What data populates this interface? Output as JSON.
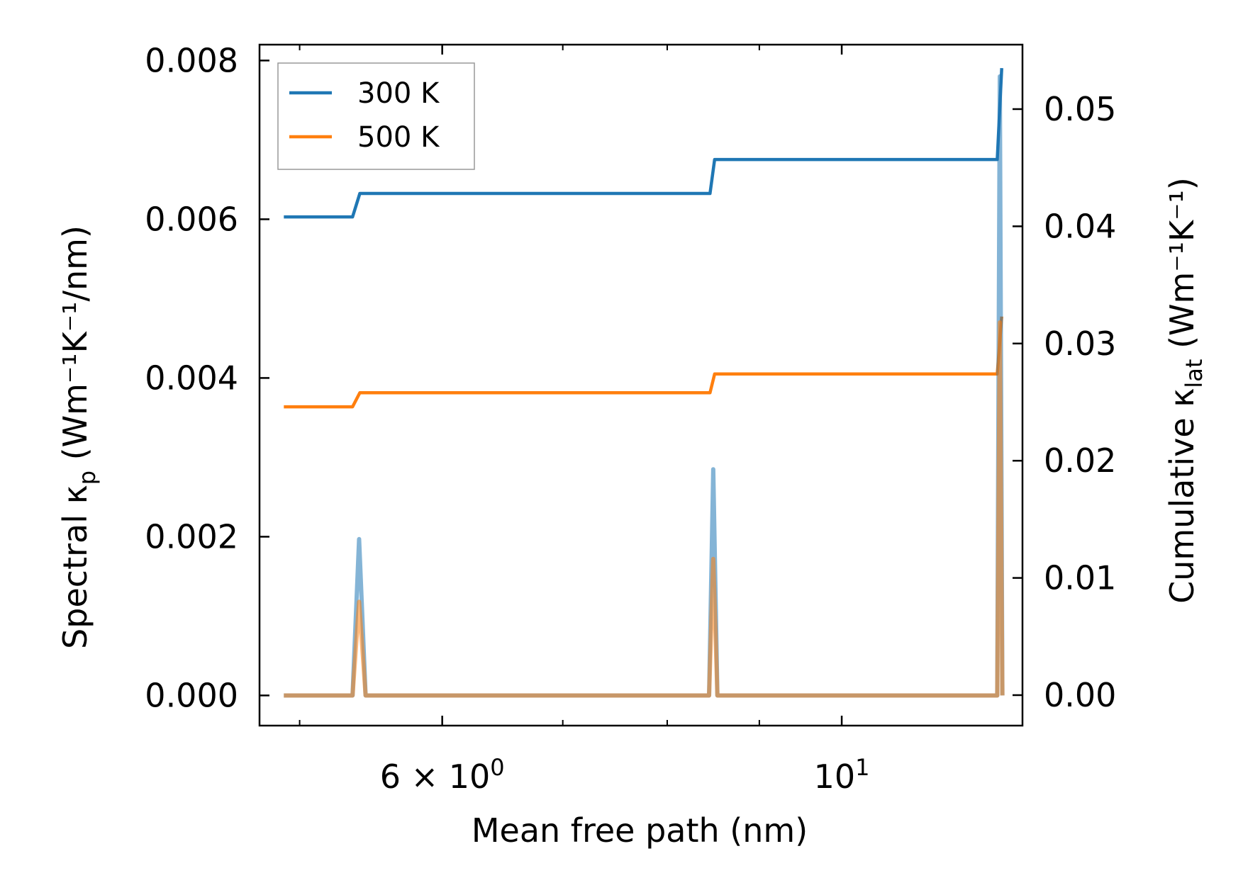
{
  "chart_data": {
    "type": "line",
    "xscale": "log",
    "xlabel": "Mean free path (nm)",
    "ylabel_left": {
      "base": "Spectral κ",
      "sub": "p",
      "units": " (Wm⁻¹K⁻¹/nm)"
    },
    "ylabel_right": {
      "base": "Cumulative κ",
      "sub": "lat",
      "units": " (Wm⁻¹K⁻¹)"
    },
    "xlim": [
      4.75,
      12.6
    ],
    "ylim_left": [
      -0.00038,
      0.0082
    ],
    "ylim_right": [
      -0.0026,
      0.0555
    ],
    "yticks_left": [
      0.0,
      0.002,
      0.004,
      0.006,
      0.008
    ],
    "yticks_left_labels": [
      "0.000",
      "0.002",
      "0.004",
      "0.006",
      "0.008"
    ],
    "yticks_right": [
      0.0,
      0.01,
      0.02,
      0.03,
      0.04,
      0.05
    ],
    "yticks_right_labels": [
      "0.00",
      "0.01",
      "0.02",
      "0.03",
      "0.04",
      "0.05"
    ],
    "xticks_major": [
      6,
      10
    ],
    "xticks_major_labels": [
      {
        "text": "6 × 10",
        "sup": "0"
      },
      {
        "text": "10",
        "sup": "1"
      }
    ],
    "xticks_minor": [
      5,
      7,
      8,
      9
    ],
    "legend": {
      "location": "upper-left",
      "entries": [
        "300 K",
        "500 K"
      ]
    },
    "series": [
      {
        "name": "300 K",
        "color": "#1f77b4",
        "cumulative": {
          "x": [
            4.9,
            5.35,
            5.4,
            8.45,
            8.5,
            12.2,
            12.27
          ],
          "y": [
            0.0408,
            0.0408,
            0.0428,
            0.0428,
            0.0457,
            0.0457,
            0.0535
          ]
        },
        "spectral": {
          "x": [
            4.9,
            5.35,
            5.395,
            5.44,
            8.44,
            8.485,
            8.53,
            12.2,
            12.24,
            12.28
          ],
          "y": [
            0.0,
            0.0,
            0.00197,
            0.0,
            0.0,
            0.00285,
            0.0,
            0.0,
            0.0078,
            0.0
          ]
        }
      },
      {
        "name": "500 K",
        "color": "#ff7f0e",
        "cumulative": {
          "x": [
            4.9,
            5.35,
            5.4,
            8.45,
            8.5,
            12.2,
            12.27
          ],
          "y": [
            0.0246,
            0.0246,
            0.0258,
            0.0258,
            0.0274,
            0.0274,
            0.0323
          ]
        },
        "spectral": {
          "x": [
            4.9,
            5.35,
            5.395,
            5.44,
            8.44,
            8.485,
            8.53,
            12.2,
            12.24,
            12.28
          ],
          "y": [
            0.0,
            0.0,
            0.00118,
            0.0,
            0.0,
            0.00172,
            0.0,
            0.0,
            0.0047,
            0.0
          ]
        }
      }
    ]
  }
}
